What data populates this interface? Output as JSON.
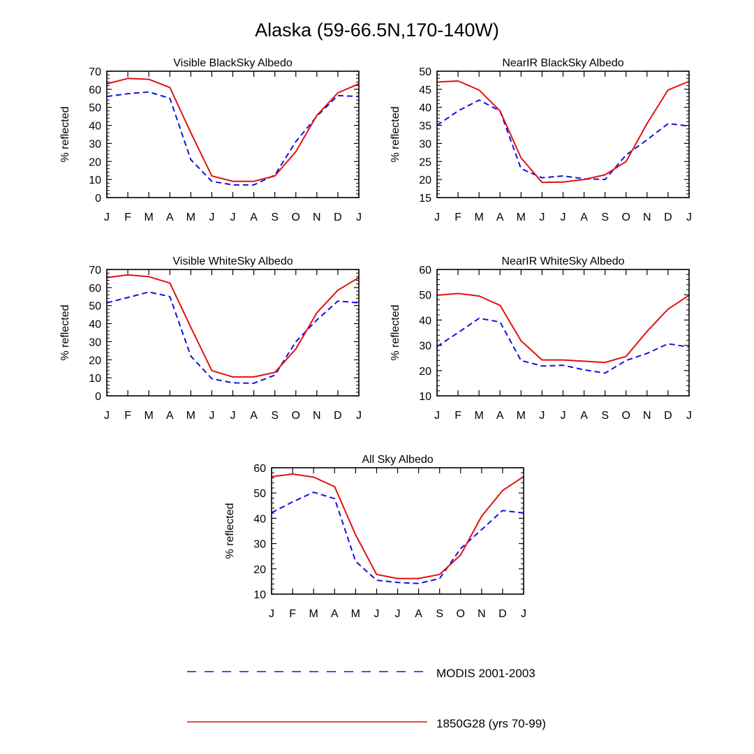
{
  "page": {
    "title": "Alaska (59-66.5N,170-140W)"
  },
  "legend": [
    {
      "label": "MODIS 2001-2003",
      "color": "#1010e0",
      "dash": "dashed"
    },
    {
      "label": "1850G28 (yrs 70-99)",
      "color": "#e01010",
      "dash": "solid"
    }
  ],
  "chart_data": [
    {
      "type": "line",
      "title": "Visible BlackSky Albedo",
      "ylabel": "% reflected",
      "xlabel": "",
      "categories": [
        "J",
        "F",
        "M",
        "A",
        "M",
        "J",
        "J",
        "A",
        "S",
        "O",
        "N",
        "D",
        "J"
      ],
      "ylim": [
        0,
        70
      ],
      "yticks": [
        0,
        10,
        20,
        30,
        40,
        50,
        60,
        70
      ],
      "series": [
        {
          "name": "MODIS 2001-2003",
          "color": "#1010e0",
          "dash": "dashed",
          "values": [
            56,
            57.5,
            58.5,
            55,
            21,
            9,
            7,
            7,
            12.5,
            31,
            45,
            56.5,
            56
          ]
        },
        {
          "name": "1850G28 (yrs 70-99)",
          "color": "#e01010",
          "dash": "solid",
          "values": [
            63,
            66,
            65.5,
            61,
            36,
            12,
            9,
            9,
            12,
            25.5,
            45.5,
            58,
            63
          ]
        }
      ]
    },
    {
      "type": "line",
      "title": "NearIR BlackSky Albedo",
      "ylabel": "% reflected",
      "xlabel": "",
      "categories": [
        "J",
        "F",
        "M",
        "A",
        "M",
        "J",
        "J",
        "A",
        "S",
        "O",
        "N",
        "D",
        "J"
      ],
      "ylim": [
        15,
        50
      ],
      "yticks": [
        15,
        20,
        25,
        30,
        35,
        40,
        45,
        50
      ],
      "series": [
        {
          "name": "MODIS 2001-2003",
          "color": "#1010e0",
          "dash": "dashed",
          "values": [
            35,
            39,
            42,
            39,
            23,
            20.5,
            21,
            20.2,
            20,
            26.8,
            31,
            35.5,
            34.8
          ]
        },
        {
          "name": "1850G28 (yrs 70-99)",
          "color": "#e01010",
          "dash": "solid",
          "values": [
            47,
            47.3,
            44.8,
            39,
            26,
            19.2,
            19.3,
            20,
            21.3,
            25,
            35.5,
            44.8,
            47.2
          ]
        }
      ]
    },
    {
      "type": "line",
      "title": "Visible WhiteSky Albedo",
      "ylabel": "% reflected",
      "xlabel": "",
      "categories": [
        "J",
        "F",
        "M",
        "A",
        "M",
        "J",
        "J",
        "A",
        "S",
        "O",
        "N",
        "D",
        "J"
      ],
      "ylim": [
        0,
        70
      ],
      "yticks": [
        0,
        10,
        20,
        30,
        40,
        50,
        60,
        70
      ],
      "series": [
        {
          "name": "MODIS 2001-2003",
          "color": "#1010e0",
          "dash": "dashed",
          "values": [
            51.5,
            54.5,
            57.5,
            55,
            22,
            9.5,
            7.2,
            7,
            11.5,
            30,
            42,
            52.5,
            51.5
          ]
        },
        {
          "name": "1850G28 (yrs 70-99)",
          "color": "#e01010",
          "dash": "solid",
          "values": [
            65.5,
            67,
            66,
            62.5,
            38,
            14,
            10.5,
            10.5,
            13,
            26,
            46,
            58.5,
            65.5
          ]
        }
      ]
    },
    {
      "type": "line",
      "title": "NearIR WhiteSky Albedo",
      "ylabel": "% reflected",
      "xlabel": "",
      "categories": [
        "J",
        "F",
        "M",
        "A",
        "M",
        "J",
        "J",
        "A",
        "S",
        "O",
        "N",
        "D",
        "J"
      ],
      "ylim": [
        10,
        60
      ],
      "yticks": [
        10,
        20,
        30,
        40,
        50,
        60
      ],
      "series": [
        {
          "name": "MODIS 2001-2003",
          "color": "#1010e0",
          "dash": "dashed",
          "values": [
            29.5,
            35,
            40.7,
            39.2,
            24,
            21.8,
            22.1,
            20.3,
            19,
            24,
            26.8,
            30.6,
            29.3
          ]
        },
        {
          "name": "1850G28 (yrs 70-99)",
          "color": "#e01010",
          "dash": "solid",
          "values": [
            49.8,
            50.5,
            49.5,
            45.8,
            31.8,
            24.2,
            24.2,
            23.7,
            23.2,
            25.6,
            35.5,
            44.3,
            49.8
          ]
        }
      ]
    },
    {
      "type": "line",
      "title": "All Sky Albedo",
      "ylabel": "% reflected",
      "xlabel": "",
      "categories": [
        "J",
        "F",
        "M",
        "A",
        "M",
        "J",
        "J",
        "A",
        "S",
        "O",
        "N",
        "D",
        "J"
      ],
      "ylim": [
        10,
        60
      ],
      "yticks": [
        10,
        20,
        30,
        40,
        50,
        60
      ],
      "series": [
        {
          "name": "MODIS 2001-2003",
          "color": "#1010e0",
          "dash": "dashed",
          "values": [
            42.2,
            46.5,
            50.3,
            47.8,
            23,
            15.5,
            14.6,
            14.2,
            16.2,
            28,
            35.5,
            43.1,
            42.1
          ]
        },
        {
          "name": "1850G28 (yrs 70-99)",
          "color": "#e01010",
          "dash": "solid",
          "values": [
            56.5,
            57.5,
            56.3,
            52.5,
            33.5,
            17.8,
            16.2,
            16.2,
            17.8,
            25.5,
            40.8,
            51,
            56.5
          ]
        }
      ]
    }
  ]
}
